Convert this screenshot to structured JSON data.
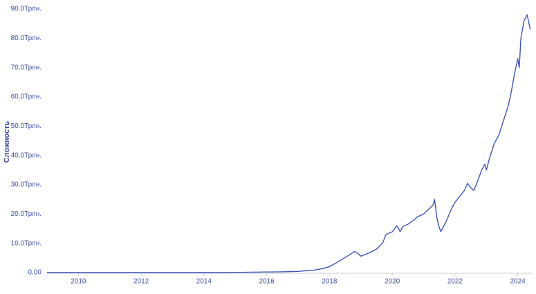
{
  "chart_data": {
    "type": "line",
    "y_label": "Сложность",
    "x": [
      2009.0,
      2010.0,
      2011.0,
      2012.0,
      2013.0,
      2014.0,
      2015.0,
      2016.0,
      2016.5,
      2017.0,
      2017.5,
      2017.8,
      2018.0,
      2018.2,
      2018.4,
      2018.6,
      2018.8,
      2018.9,
      2019.0,
      2019.1,
      2019.3,
      2019.5,
      2019.7,
      2019.8,
      2020.0,
      2020.15,
      2020.25,
      2020.35,
      2020.5,
      2020.7,
      2020.8,
      2021.0,
      2021.15,
      2021.3,
      2021.35,
      2021.42,
      2021.48,
      2021.55,
      2021.7,
      2021.9,
      2022.0,
      2022.15,
      2022.3,
      2022.4,
      2022.5,
      2022.6,
      2022.75,
      2022.85,
      2022.95,
      2023.0,
      2023.1,
      2023.25,
      2023.4,
      2023.55,
      2023.7,
      2023.8,
      2023.9,
      2024.0,
      2024.05,
      2024.1,
      2024.2,
      2024.3,
      2024.4
    ],
    "series": [
      {
        "name": "Сложность",
        "color": "#3a55b8",
        "values": [
          0,
          0,
          0,
          0,
          0,
          0,
          0.05,
          0.2,
          0.25,
          0.4,
          0.8,
          1.4,
          2,
          3.2,
          4.5,
          5.8,
          7.2,
          6.6,
          5.6,
          6,
          6.9,
          8,
          10.2,
          13,
          13.9,
          16,
          14,
          15.8,
          16.5,
          18,
          19,
          20,
          21.5,
          23,
          25,
          19,
          16,
          14,
          17,
          22,
          24,
          26,
          28,
          30.5,
          29,
          28,
          32,
          35,
          37,
          35,
          39,
          44,
          47,
          52,
          57,
          62,
          68,
          73,
          70,
          80,
          86,
          88,
          83
        ]
      }
    ],
    "xlim": [
      2009.0,
      2024.45
    ],
    "xticks": [
      2010,
      2012,
      2014,
      2016,
      2018,
      2020,
      2022,
      2024
    ],
    "ylim": [
      0,
      90
    ],
    "yticks": [
      {
        "value": 0,
        "label": "0.00"
      },
      {
        "value": 10,
        "label": "10.0Трлн."
      },
      {
        "value": 20,
        "label": "20.0Трлн."
      },
      {
        "value": 30,
        "label": "30.0Трлн."
      },
      {
        "value": 40,
        "label": "40.0Трлн."
      },
      {
        "value": 50,
        "label": "50.0Трлн."
      },
      {
        "value": 60,
        "label": "60.0Трлн."
      },
      {
        "value": 70,
        "label": "70.0Трлн."
      },
      {
        "value": 80,
        "label": "80.0Трлн."
      },
      {
        "value": 90,
        "label": "90.0Трлн."
      }
    ],
    "grid": false
  }
}
